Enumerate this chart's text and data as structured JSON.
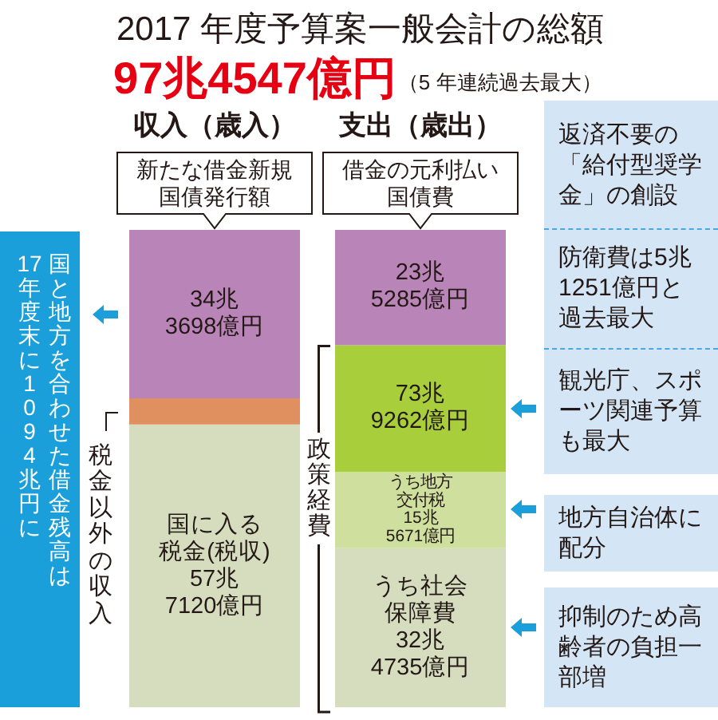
{
  "chart_data": {
    "type": "bar",
    "stacked": true,
    "title": "2017 年度予算案一般会計の総額",
    "subtitle": "97兆4547億円",
    "categories": [
      "収入（歳入）",
      "支出（歳出）"
    ],
    "series": [
      {
        "color": "#d6ddbf",
        "values": [
          57.712,
          null
        ],
        "value_labels": [
          "国に入る税金(税収)57兆7120億円",
          null
        ]
      },
      {
        "color": "#e0905e",
        "values": [
          5.3729,
          null
        ]
      },
      {
        "color": "#b985b8",
        "values": [
          34.3698,
          null
        ],
        "value_labels": [
          "34兆3698億円",
          null
        ]
      },
      {
        "color": "#d6ddbf",
        "values": [
          null,
          32.4735
        ],
        "value_labels": [
          null,
          "うち社会保障費32兆4735億円"
        ]
      },
      {
        "color": "#cfdf9e",
        "values": [
          null,
          15.5671
        ],
        "value_labels": [
          null,
          "うち地方交付税15兆5671億円"
        ]
      },
      {
        "color": "#a8ce3b",
        "values": [
          null,
          25.8856
        ]
      },
      {
        "color": "#b985b8",
        "values": [
          null,
          23.5285
        ]
      }
    ],
    "annotations": [
      "（5 年連続過去最大）",
      {
        "text": "新たな借金新規国債発行額",
        "x": "収入（歳入）",
        "y": 97.4547
      },
      {
        "text": "借金の元利払い国債費",
        "x": "支出（歳出）",
        "y": 97.4547
      },
      "国と地方を合わせた借金残高は",
      "17年度末に1094兆円に",
      "税金以外の収入",
      "政策経費",
      "73兆9262億円",
      "23兆5285億円",
      "返済不要の「給付型奨学金」の創設",
      "防衛費は5兆1251億円と過去最大",
      "観光庁、スポーツ関連予算も最大",
      "地方自治体に配分",
      "抑制のため高齢者の負担一部増"
    ]
  }
}
